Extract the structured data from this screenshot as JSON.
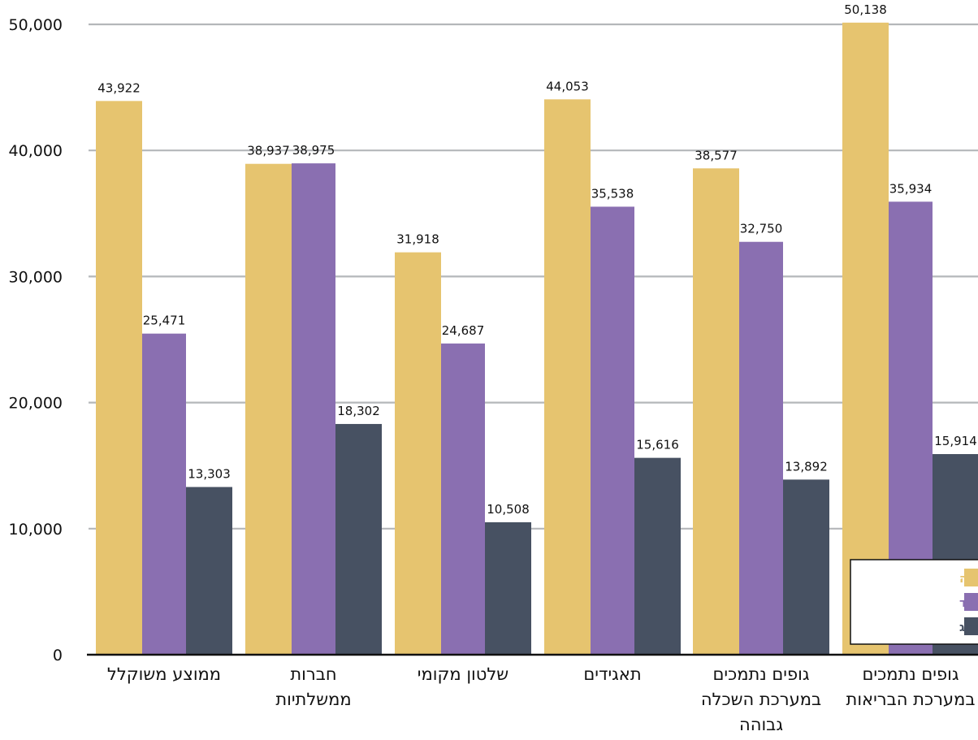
{
  "chart_data": {
    "type": "bar",
    "title": "",
    "xlabel": "",
    "ylabel": "",
    "ylim": [
      0,
      50000
    ],
    "yticks": [
      0,
      10000,
      20000,
      30000,
      40000,
      50000
    ],
    "ytick_labels": [
      "0",
      "10,000",
      "20,000",
      "30,000",
      "40,000",
      "50,000"
    ],
    "grid": true,
    "legend_position": "bottom-right",
    "categories": [
      [
        "ממוצע משוקלל"
      ],
      [
        "חברות",
        "ממשלתיות"
      ],
      [
        "שלטון מקומי"
      ],
      [
        "תאגידים"
      ],
      [
        "גופים נתמכים",
        "במערכת השכלה",
        "גבוהה"
      ],
      [
        "גופים נתמכים",
        "במערכת הבריאות"
      ]
    ],
    "series": [
      {
        "name": "בעלי שכר גבוה",
        "color": "#e6c46f",
        "values": [
          43922,
          38937,
          31918,
          44053,
          38577,
          50138
        ],
        "labels": [
          "43,922",
          "38,937",
          "31,918",
          "44,053",
          "38,577",
          "50,138"
        ]
      },
      {
        "name": "בעלי תפקיד",
        "color": "#8a6fb1",
        "values": [
          25471,
          38975,
          24687,
          35538,
          32750,
          35934
        ],
        "labels": [
          "25,471",
          "38,975",
          "24,687",
          "35,538",
          "32,750",
          "35,934"
        ]
      },
      {
        "name": "עובדי דירוג",
        "color": "#475162",
        "values": [
          13303,
          18302,
          10508,
          15616,
          13892,
          15914
        ],
        "labels": [
          "13,303",
          "18,302",
          "10,508",
          "15,616",
          "13,892",
          "15,914"
        ]
      }
    ]
  }
}
